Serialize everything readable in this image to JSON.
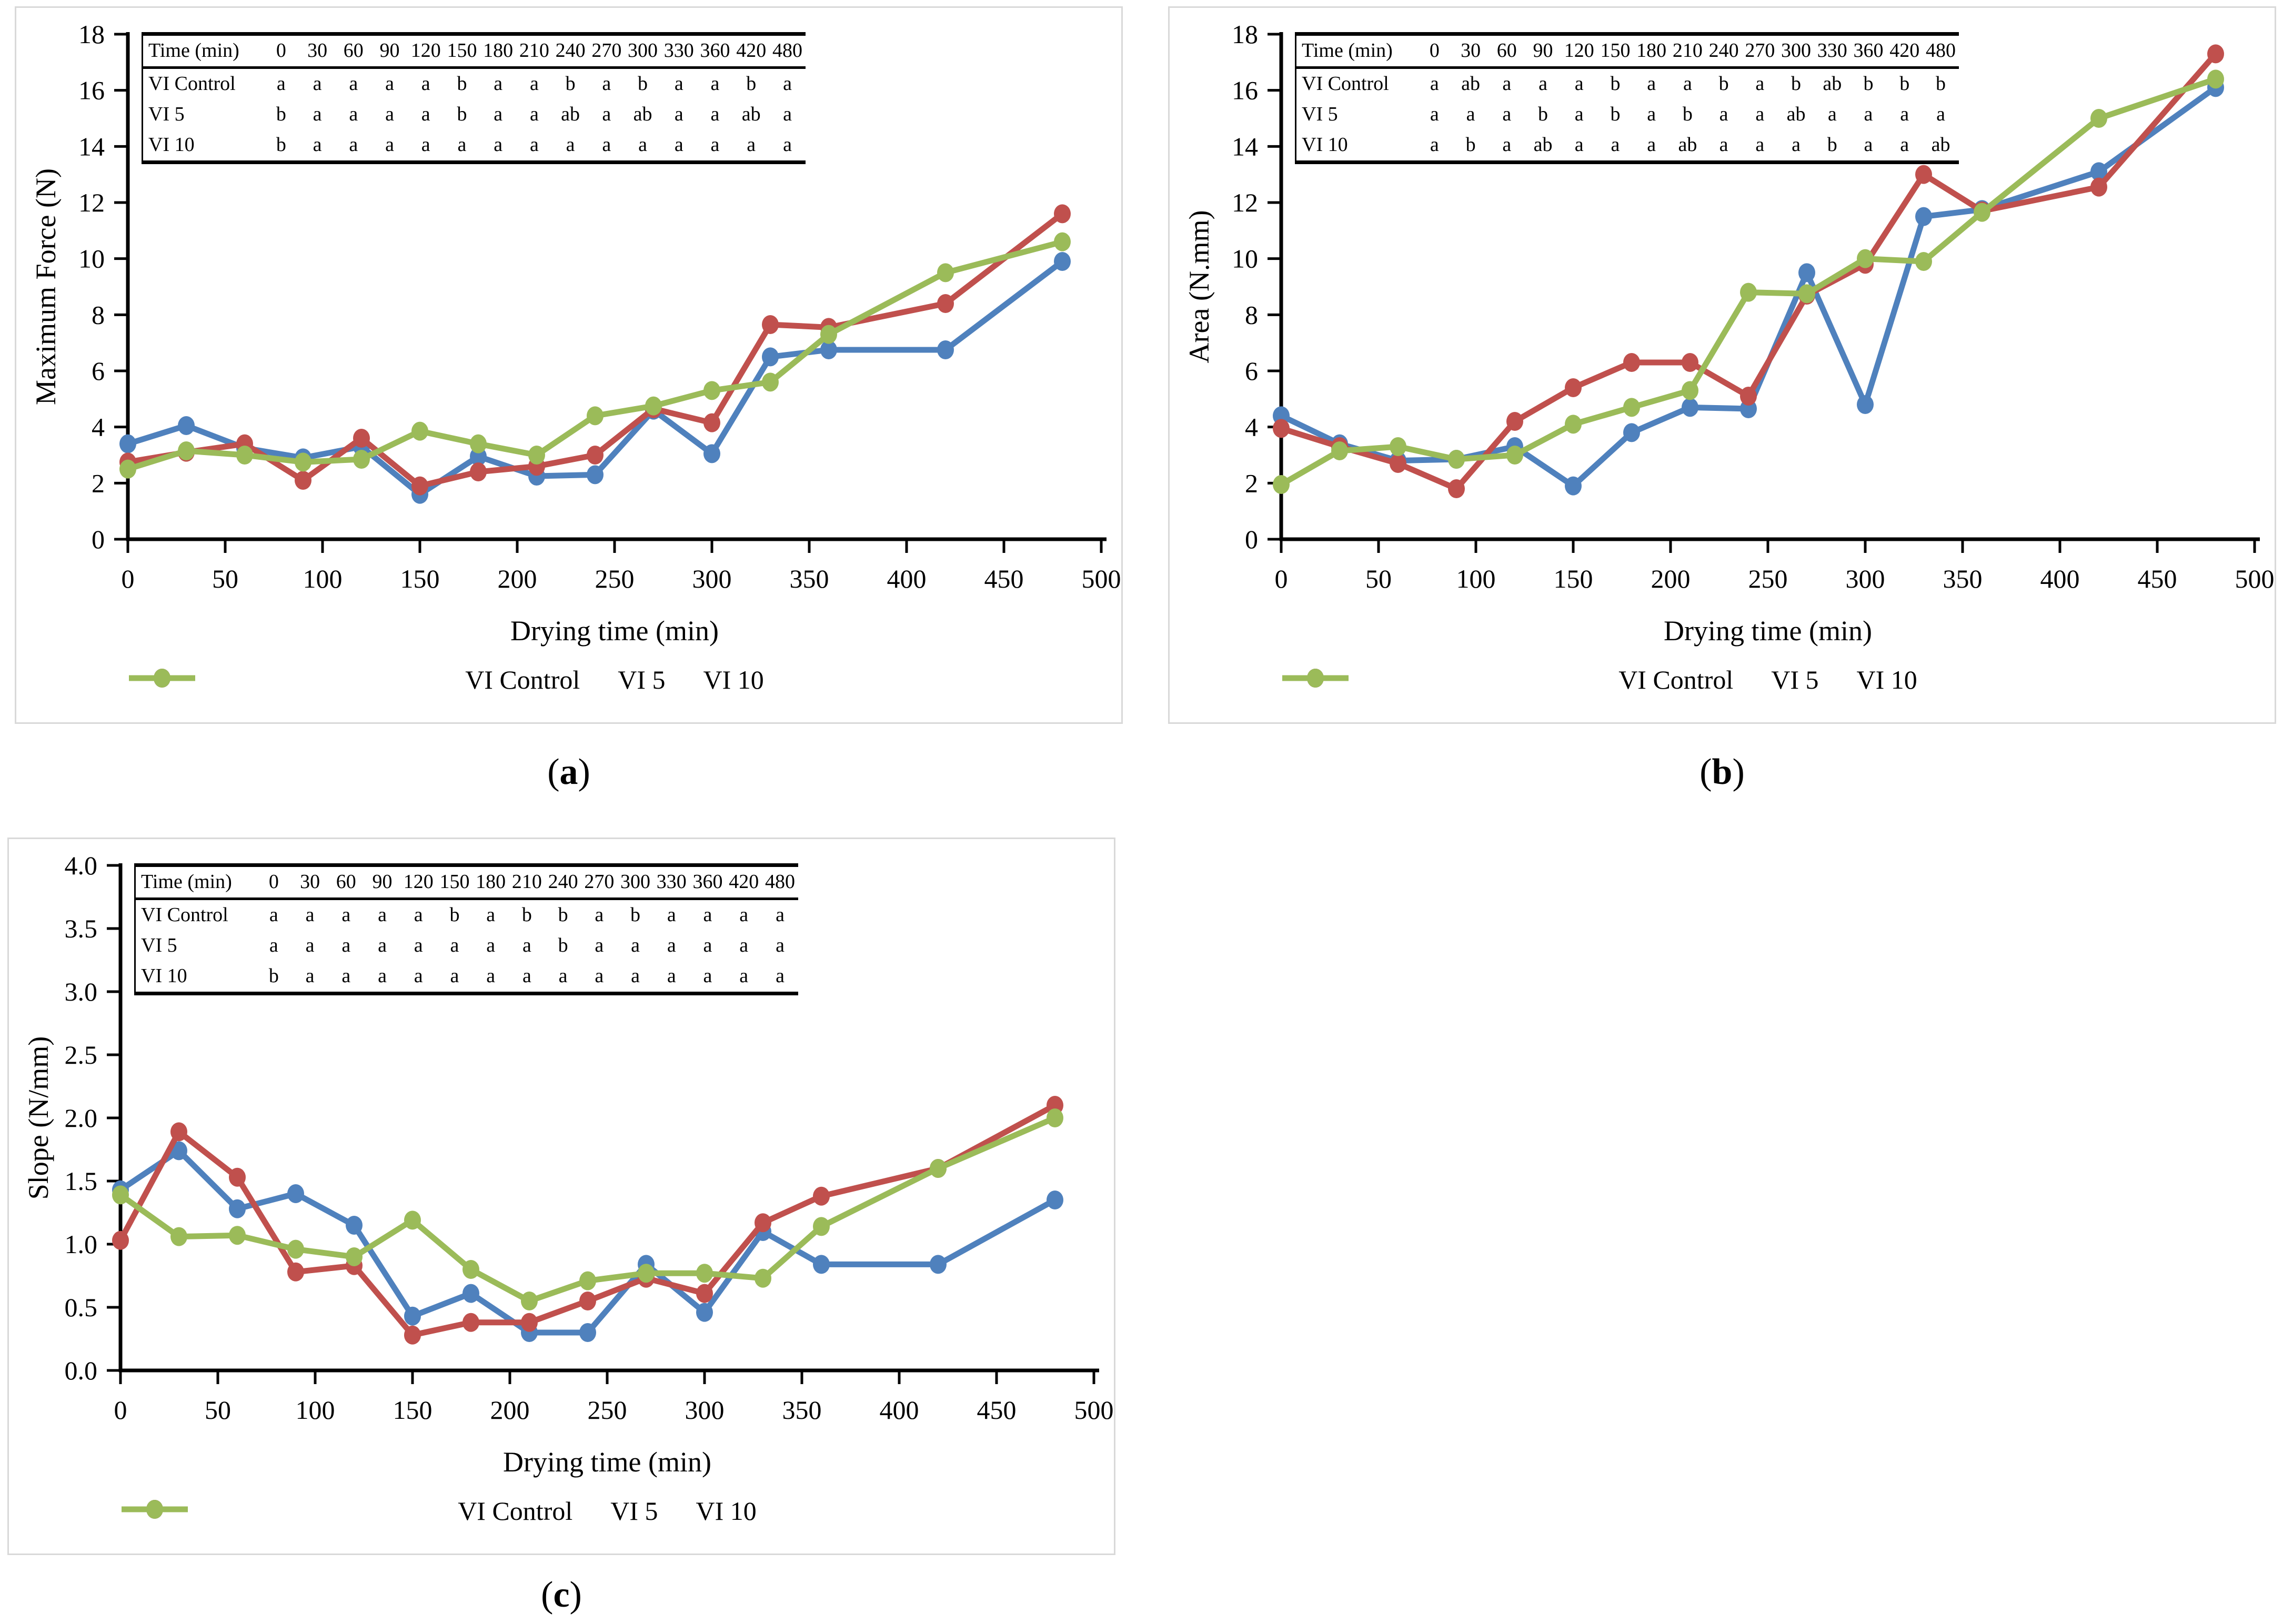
{
  "figure": {
    "background": "#ffffff",
    "panel_border_color": "#d9d9d9",
    "axis_color": "#000000",
    "series_colors": {
      "vi_control": "#4F81BD",
      "vi_5": "#C0504D",
      "vi_10": "#9BBB59"
    }
  },
  "chart_data": [
    {
      "type": "line",
      "panel_label": "(a)",
      "panel_letter": "a",
      "title": "",
      "xlabel": "Drying time (min)",
      "ylabel": "Maximum Force (N)",
      "xlim": [
        0,
        500
      ],
      "ylim": [
        0,
        18
      ],
      "xticks": [
        0,
        50,
        100,
        150,
        200,
        250,
        300,
        350,
        400,
        450,
        500
      ],
      "ytick_labels": [
        "0",
        "2",
        "4",
        "6",
        "8",
        "10",
        "12",
        "14",
        "16",
        "18"
      ],
      "grid": false,
      "legend_position": "bottom",
      "x": [
        0,
        30,
        60,
        90,
        120,
        150,
        180,
        210,
        240,
        270,
        300,
        330,
        360,
        420,
        480
      ],
      "series": [
        {
          "name": "VI Control",
          "color": "#4F81BD",
          "values": [
            3.4,
            4.05,
            3.25,
            2.9,
            3.3,
            1.6,
            2.95,
            2.25,
            2.3,
            4.6,
            3.05,
            6.5,
            6.75,
            6.75,
            9.9
          ]
        },
        {
          "name": "VI 5",
          "color": "#C0504D",
          "values": [
            2.75,
            3.1,
            3.4,
            2.1,
            3.6,
            1.9,
            2.4,
            2.6,
            3.0,
            4.65,
            4.15,
            7.65,
            7.55,
            8.4,
            11.6
          ]
        },
        {
          "name": "VI 10",
          "color": "#9BBB59",
          "values": [
            2.5,
            3.15,
            3.0,
            2.75,
            2.85,
            3.85,
            3.4,
            3.0,
            4.4,
            4.75,
            5.3,
            5.6,
            7.3,
            9.5,
            10.6
          ]
        }
      ],
      "sig_table": {
        "header": [
          "Time (min)",
          "0",
          "30",
          "60",
          "90",
          "120",
          "150",
          "180",
          "210",
          "240",
          "270",
          "300",
          "330",
          "360",
          "420",
          "480"
        ],
        "rows": [
          {
            "label": "VI Control",
            "cells": [
              "a",
              "a",
              "a",
              "a",
              "a",
              "b",
              "a",
              "a",
              "b",
              "a",
              "b",
              "a",
              "a",
              "b",
              "a"
            ]
          },
          {
            "label": "VI 5",
            "cells": [
              "b",
              "a",
              "a",
              "a",
              "a",
              "b",
              "a",
              "a",
              "ab",
              "a",
              "ab",
              "a",
              "a",
              "ab",
              "a"
            ]
          },
          {
            "label": "VI 10",
            "cells": [
              "b",
              "a",
              "a",
              "a",
              "a",
              "a",
              "a",
              "a",
              "a",
              "a",
              "a",
              "a",
              "a",
              "a",
              "a"
            ]
          }
        ]
      }
    },
    {
      "type": "line",
      "panel_label": "(b)",
      "panel_letter": "b",
      "title": "",
      "xlabel": "Drying time (min)",
      "ylabel": "Area (N.mm)",
      "xlim": [
        0,
        500
      ],
      "ylim": [
        0,
        18
      ],
      "xticks": [
        0,
        50,
        100,
        150,
        200,
        250,
        300,
        350,
        400,
        450,
        500
      ],
      "ytick_labels": [
        "0",
        "2",
        "4",
        "6",
        "8",
        "10",
        "12",
        "14",
        "16",
        "18"
      ],
      "grid": false,
      "legend_position": "bottom",
      "x": [
        0,
        30,
        60,
        90,
        120,
        150,
        180,
        210,
        240,
        270,
        300,
        330,
        360,
        420,
        480
      ],
      "series": [
        {
          "name": "VI Control",
          "color": "#4F81BD",
          "values": [
            4.4,
            3.4,
            2.8,
            2.85,
            3.3,
            1.9,
            3.8,
            4.7,
            4.65,
            9.5,
            4.8,
            11.5,
            11.75,
            13.1,
            16.1
          ]
        },
        {
          "name": "VI 5",
          "color": "#C0504D",
          "values": [
            3.95,
            3.3,
            2.7,
            1.8,
            4.2,
            5.4,
            6.3,
            6.3,
            5.1,
            8.7,
            9.8,
            13.0,
            11.7,
            12.55,
            17.3
          ]
        },
        {
          "name": "VI 10",
          "color": "#9BBB59",
          "values": [
            1.95,
            3.15,
            3.3,
            2.85,
            3.0,
            4.1,
            4.7,
            5.3,
            8.8,
            8.75,
            10.0,
            9.9,
            11.65,
            15.0,
            16.4
          ]
        }
      ],
      "sig_table": {
        "header": [
          "Time (min)",
          "0",
          "30",
          "60",
          "90",
          "120",
          "150",
          "180",
          "210",
          "240",
          "270",
          "300",
          "330",
          "360",
          "420",
          "480"
        ],
        "rows": [
          {
            "label": "VI Control",
            "cells": [
              "a",
              "ab",
              "a",
              "a",
              "a",
              "b",
              "a",
              "a",
              "b",
              "a",
              "b",
              "ab",
              "b",
              "b",
              "b"
            ]
          },
          {
            "label": "VI 5",
            "cells": [
              "a",
              "a",
              "a",
              "b",
              "a",
              "b",
              "a",
              "b",
              "a",
              "a",
              "ab",
              "a",
              "a",
              "a",
              "a"
            ]
          },
          {
            "label": "VI 10",
            "cells": [
              "a",
              "b",
              "a",
              "ab",
              "a",
              "a",
              "a",
              "ab",
              "a",
              "a",
              "a",
              "b",
              "a",
              "a",
              "ab"
            ]
          }
        ]
      }
    },
    {
      "type": "line",
      "panel_label": "(c)",
      "panel_letter": "c",
      "title": "",
      "xlabel": "Drying time (min)",
      "ylabel": "Slope (N/mm)",
      "xlim": [
        0,
        500
      ],
      "ylim": [
        0,
        4
      ],
      "xticks": [
        0,
        50,
        100,
        150,
        200,
        250,
        300,
        350,
        400,
        450,
        500
      ],
      "ytick_labels": [
        "0.0",
        "0.5",
        "1.0",
        "1.5",
        "2.0",
        "2.5",
        "3.0",
        "3.5",
        "4.0"
      ],
      "grid": false,
      "legend_position": "bottom",
      "x": [
        0,
        30,
        60,
        90,
        120,
        150,
        180,
        210,
        240,
        270,
        300,
        330,
        360,
        420,
        480
      ],
      "series": [
        {
          "name": "VI Control",
          "color": "#4F81BD",
          "values": [
            1.43,
            1.74,
            1.28,
            1.4,
            1.15,
            0.43,
            0.61,
            0.3,
            0.3,
            0.84,
            0.46,
            1.1,
            0.84,
            0.84,
            1.35
          ]
        },
        {
          "name": "VI 5",
          "color": "#C0504D",
          "values": [
            1.03,
            1.89,
            1.53,
            0.78,
            0.83,
            0.28,
            0.38,
            0.38,
            0.55,
            0.73,
            0.61,
            1.17,
            1.38,
            1.6,
            2.1
          ]
        },
        {
          "name": "VI 10",
          "color": "#9BBB59",
          "values": [
            1.39,
            1.06,
            1.07,
            0.96,
            0.9,
            1.19,
            0.8,
            0.55,
            0.71,
            0.77,
            0.77,
            0.73,
            1.14,
            1.6,
            2.0
          ]
        }
      ],
      "sig_table": {
        "header": [
          "Time (min)",
          "0",
          "30",
          "60",
          "90",
          "120",
          "150",
          "180",
          "210",
          "240",
          "270",
          "300",
          "330",
          "360",
          "420",
          "480"
        ],
        "rows": [
          {
            "label": "VI Control",
            "cells": [
              "a",
              "a",
              "a",
              "a",
              "a",
              "b",
              "a",
              "b",
              "b",
              "a",
              "b",
              "a",
              "a",
              "a",
              "a"
            ]
          },
          {
            "label": "VI 5",
            "cells": [
              "a",
              "a",
              "a",
              "a",
              "a",
              "a",
              "a",
              "a",
              "b",
              "a",
              "a",
              "a",
              "a",
              "a",
              "a"
            ]
          },
          {
            "label": "VI 10",
            "cells": [
              "b",
              "a",
              "a",
              "a",
              "a",
              "a",
              "a",
              "a",
              "a",
              "a",
              "a",
              "a",
              "a",
              "a",
              "a"
            ]
          }
        ]
      }
    }
  ]
}
